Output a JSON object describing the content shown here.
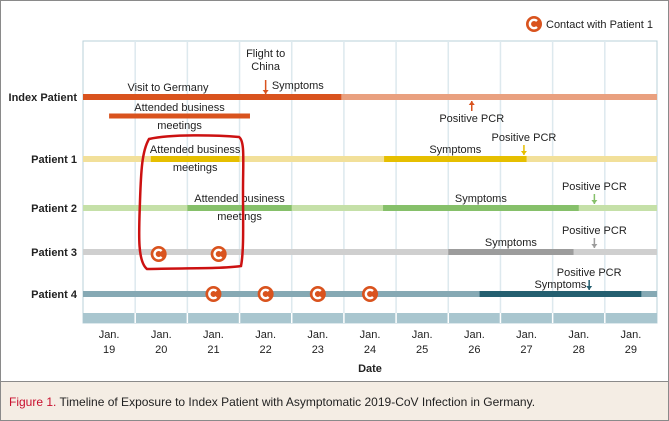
{
  "legend": {
    "icon_letter": "C",
    "label": "Contact with Patient 1",
    "icon_color": "#d9531e"
  },
  "caption": {
    "figure_label": "Figure 1.",
    "title": "Timeline of Exposure to Index Patient with Asymptomatic 2019-CoV Infection in Germany."
  },
  "chart_data": {
    "type": "timeline",
    "xlabel": "Date",
    "x_ticks": [
      {
        "month": "Jan.",
        "day": "19"
      },
      {
        "month": "Jan.",
        "day": "20"
      },
      {
        "month": "Jan.",
        "day": "21"
      },
      {
        "month": "Jan.",
        "day": "22"
      },
      {
        "month": "Jan.",
        "day": "23"
      },
      {
        "month": "Jan.",
        "day": "24"
      },
      {
        "month": "Jan.",
        "day": "25"
      },
      {
        "month": "Jan.",
        "day": "26"
      },
      {
        "month": "Jan.",
        "day": "27"
      },
      {
        "month": "Jan.",
        "day": "28"
      },
      {
        "month": "Jan.",
        "day": "29"
      }
    ],
    "x_range": [
      18.5,
      29.5
    ],
    "rows": [
      {
        "name": "Index Patient",
        "light": "#e9a07f",
        "dark": "#d9531e",
        "segments": [
          {
            "start": 18.5,
            "end": 23.45,
            "label": "Visit to Germany"
          }
        ],
        "extra_bars": [
          {
            "start": 19.0,
            "end": 21.7,
            "label": "Attended business",
            "label2": "meetings"
          }
        ],
        "arrows": [
          {
            "day": 22.0,
            "dir": "down",
            "label": "Flight to",
            "label2": "China"
          },
          {
            "day": 25.95,
            "dir": "up",
            "label": "Positive PCR"
          }
        ],
        "notes": [
          {
            "day": 22.1,
            "label": "Symptoms"
          }
        ],
        "contacts": []
      },
      {
        "name": "Patient 1",
        "light": "#f2e09a",
        "dark": "#e6bf00",
        "segments": [
          {
            "start": 19.8,
            "end": 21.5,
            "label": "Attended business",
            "label2": "meetings"
          },
          {
            "start": 24.27,
            "end": 27.0,
            "label": "Symptoms"
          }
        ],
        "arrows": [
          {
            "day": 26.95,
            "dir": "down",
            "label": "Positive PCR"
          }
        ],
        "contacts": []
      },
      {
        "name": "Patient 2",
        "light": "#c5e0a8",
        "dark": "#86c06a",
        "segments": [
          {
            "start": 20.5,
            "end": 22.5,
            "label": "Attended business",
            "label2": "meetings"
          },
          {
            "start": 24.25,
            "end": 28.0,
            "label": "Symptoms"
          }
        ],
        "arrows": [
          {
            "day": 28.3,
            "dir": "down",
            "label": "Positive PCR"
          }
        ],
        "contacts": []
      },
      {
        "name": "Patient 3",
        "light": "#cfcfcf",
        "dark": "#9c9c9c",
        "segments": [
          {
            "start": 25.5,
            "end": 27.9,
            "label": "Symptoms"
          }
        ],
        "arrows": [
          {
            "day": 28.3,
            "dir": "down",
            "label": "Positive PCR"
          }
        ],
        "contacts": [
          19.95,
          21.1
        ]
      },
      {
        "name": "Patient 4",
        "light": "#86a9b4",
        "dark": "#245f70",
        "segments": [
          {
            "start": 26.1,
            "end": 29.2,
            "label": "Symptoms"
          }
        ],
        "arrows": [
          {
            "day": 28.2,
            "dir": "down",
            "label": "Positive PCR"
          }
        ],
        "contacts": [
          21.0,
          22.0,
          23.0,
          24.0
        ]
      }
    ],
    "annotation": {
      "type": "hand-drawn box",
      "color": "#cc1111"
    }
  }
}
